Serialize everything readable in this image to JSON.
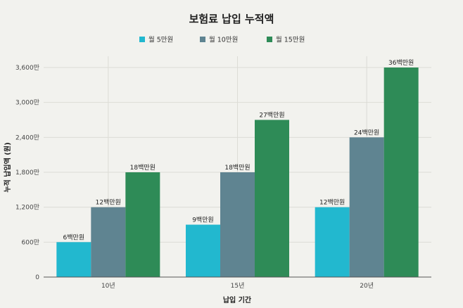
{
  "chart_data": {
    "type": "bar",
    "title": "보험료 납입 누적액",
    "xlabel": "납입 기간",
    "ylabel": "누적 납입액 (원)",
    "categories": [
      "10년",
      "15년",
      "20년"
    ],
    "ylim": [
      0,
      3600
    ],
    "yticks": [
      0,
      600,
      1200,
      1800,
      2400,
      3000,
      3600
    ],
    "ytick_labels": [
      "0",
      "600만",
      "1,200만",
      "1,800만",
      "2,400만",
      "3,000만",
      "3,600만"
    ],
    "legend_position": "top-center",
    "grid": true,
    "series": [
      {
        "name": "월 5만원",
        "color": "#22b8cf",
        "values": [
          600,
          900,
          1200
        ],
        "labels": [
          "6백만원",
          "9백만원",
          "12백만원"
        ]
      },
      {
        "name": "월 10만원",
        "color": "#5f8491",
        "values": [
          1200,
          1800,
          2400
        ],
        "labels": [
          "12백만원",
          "18백만원",
          "24백만원"
        ]
      },
      {
        "name": "월 15만원",
        "color": "#2e8b57",
        "values": [
          1800,
          2700,
          3600
        ],
        "labels": [
          "18백만원",
          "27백만원",
          "36백만원"
        ]
      }
    ]
  }
}
